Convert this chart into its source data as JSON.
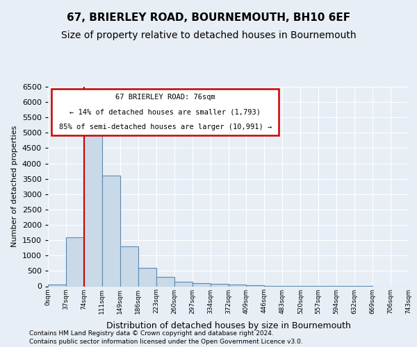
{
  "title1": "67, BRIERLEY ROAD, BOURNEMOUTH, BH10 6EF",
  "title2": "Size of property relative to detached houses in Bournemouth",
  "xlabel": "Distribution of detached houses by size in Bournemouth",
  "ylabel": "Number of detached properties",
  "footer1": "Contains HM Land Registry data © Crown copyright and database right 2024.",
  "footer2": "Contains public sector information licensed under the Open Government Licence v3.0.",
  "bin_labels": [
    "0sqm",
    "37sqm",
    "74sqm",
    "111sqm",
    "149sqm",
    "186sqm",
    "223sqm",
    "260sqm",
    "297sqm",
    "334sqm",
    "372sqm",
    "409sqm",
    "446sqm",
    "483sqm",
    "520sqm",
    "557sqm",
    "594sqm",
    "632sqm",
    "669sqm",
    "706sqm",
    "743sqm"
  ],
  "bar_heights": [
    60,
    1600,
    5100,
    3600,
    1300,
    600,
    300,
    150,
    110,
    70,
    50,
    30,
    15,
    8,
    4,
    2,
    1,
    1,
    0,
    0
  ],
  "bar_color": "#c9d9e8",
  "bar_edge_color": "#5a8ab0",
  "property_bin_index": 2,
  "vline_color": "#cc0000",
  "annotation_title": "67 BRIERLEY ROAD: 76sqm",
  "annotation_line1": "← 14% of detached houses are smaller (1,793)",
  "annotation_line2": "85% of semi-detached houses are larger (10,991) →",
  "annotation_box_color": "#cc0000",
  "ylim": [
    0,
    6500
  ],
  "yticks": [
    0,
    500,
    1000,
    1500,
    2000,
    2500,
    3000,
    3500,
    4000,
    4500,
    5000,
    5500,
    6000,
    6500
  ],
  "background_color": "#e8eef5",
  "plot_bg_color": "#e8eef5",
  "grid_color": "#ffffff",
  "title1_fontsize": 11,
  "title2_fontsize": 10
}
